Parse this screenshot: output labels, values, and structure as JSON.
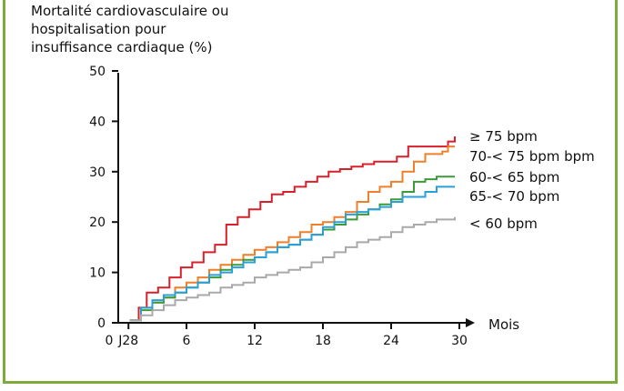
{
  "chart_data": {
    "type": "line",
    "ylabel": "Mortalité cardiovasculaire ou hospitalisation pour insuffisance cardiaque (%)",
    "xlabel": "Mois",
    "xlim": [
      0,
      30
    ],
    "ylim": [
      0,
      50
    ],
    "y_ticks": [
      "0",
      "10",
      "20",
      "30",
      "40",
      "50"
    ],
    "x_ticks": [
      {
        "value": 0,
        "label": "0"
      },
      {
        "value": 0.9,
        "label": "J28"
      },
      {
        "value": 6,
        "label": "6"
      },
      {
        "value": 12,
        "label": "12"
      },
      {
        "value": 18,
        "label": "18"
      },
      {
        "value": 24,
        "label": "24"
      },
      {
        "value": 30,
        "label": "30"
      }
    ],
    "grid": false,
    "legend_placement": "right, at line ends",
    "series": [
      {
        "name": "≥ 75 bpm",
        "color": "#d8202a",
        "points": [
          [
            1,
            0.5
          ],
          [
            1.8,
            3
          ],
          [
            2.5,
            6
          ],
          [
            3.5,
            7
          ],
          [
            4.5,
            9
          ],
          [
            5.5,
            11
          ],
          [
            6.5,
            12
          ],
          [
            7.5,
            14
          ],
          [
            8.5,
            15.5
          ],
          [
            9.5,
            19.5
          ],
          [
            10.5,
            21
          ],
          [
            11.5,
            22.5
          ],
          [
            12.5,
            24
          ],
          [
            13.5,
            25.5
          ],
          [
            14.5,
            26
          ],
          [
            15.5,
            27
          ],
          [
            16.5,
            28
          ],
          [
            17.5,
            29
          ],
          [
            18.5,
            30
          ],
          [
            19.5,
            30.5
          ],
          [
            20.5,
            31
          ],
          [
            21.5,
            31.5
          ],
          [
            22.5,
            32
          ],
          [
            23.5,
            32
          ],
          [
            24.5,
            33
          ],
          [
            25.5,
            35
          ],
          [
            27,
            35
          ],
          [
            28.5,
            35
          ],
          [
            29,
            36
          ],
          [
            29.6,
            37
          ]
        ]
      },
      {
        "name": "70-< 75 bpm bpm",
        "color": "#ef7f2a",
        "points": [
          [
            1,
            0.5
          ],
          [
            2,
            3
          ],
          [
            3,
            4
          ],
          [
            4,
            5
          ],
          [
            5,
            7
          ],
          [
            6,
            8
          ],
          [
            7,
            9
          ],
          [
            8,
            10.5
          ],
          [
            9,
            11.5
          ],
          [
            10,
            12.5
          ],
          [
            11,
            13.5
          ],
          [
            12,
            14.5
          ],
          [
            13,
            15
          ],
          [
            14,
            16
          ],
          [
            15,
            17
          ],
          [
            16,
            18
          ],
          [
            17,
            19.5
          ],
          [
            18,
            20
          ],
          [
            19,
            21
          ],
          [
            20,
            22
          ],
          [
            21,
            24
          ],
          [
            22,
            26
          ],
          [
            23,
            27
          ],
          [
            24,
            28
          ],
          [
            25,
            30
          ],
          [
            26,
            32
          ],
          [
            27,
            33.5
          ],
          [
            28.5,
            34
          ],
          [
            29,
            35
          ],
          [
            29.6,
            35
          ]
        ]
      },
      {
        "name": "60-< 65 bpm",
        "color": "#3d9a38",
        "points": [
          [
            1,
            0.5
          ],
          [
            2,
            2.5
          ],
          [
            3,
            4
          ],
          [
            4,
            5
          ],
          [
            5,
            6
          ],
          [
            6,
            7
          ],
          [
            7,
            8
          ],
          [
            8,
            9
          ],
          [
            9,
            10.5
          ],
          [
            10,
            11.5
          ],
          [
            11,
            12.5
          ],
          [
            12,
            13
          ],
          [
            13,
            14
          ],
          [
            14,
            15
          ],
          [
            15,
            15.5
          ],
          [
            16,
            16.5
          ],
          [
            17,
            17.5
          ],
          [
            18,
            18.5
          ],
          [
            19,
            19.5
          ],
          [
            20,
            20.5
          ],
          [
            21,
            21.5
          ],
          [
            22,
            22.5
          ],
          [
            23,
            23.5
          ],
          [
            24,
            24.5
          ],
          [
            25,
            26
          ],
          [
            26,
            28
          ],
          [
            27,
            28.5
          ],
          [
            28,
            29
          ],
          [
            29,
            29
          ],
          [
            29.6,
            29
          ]
        ]
      },
      {
        "name": "65-< 70 bpm",
        "color": "#2a9fd8",
        "points": [
          [
            1,
            0.5
          ],
          [
            2,
            3
          ],
          [
            3,
            4.5
          ],
          [
            4,
            5.5
          ],
          [
            5,
            6
          ],
          [
            6,
            7
          ],
          [
            7,
            8
          ],
          [
            8,
            9.5
          ],
          [
            9,
            10
          ],
          [
            10,
            11
          ],
          [
            11,
            12
          ],
          [
            12,
            13
          ],
          [
            13,
            14
          ],
          [
            14,
            15
          ],
          [
            15,
            15.5
          ],
          [
            16,
            16.5
          ],
          [
            17,
            17.5
          ],
          [
            18,
            19
          ],
          [
            19,
            20
          ],
          [
            20,
            21.5
          ],
          [
            21,
            22
          ],
          [
            22,
            22.5
          ],
          [
            23,
            23
          ],
          [
            24,
            24
          ],
          [
            25,
            25
          ],
          [
            26,
            25
          ],
          [
            27,
            26
          ],
          [
            28,
            27
          ],
          [
            29,
            27
          ],
          [
            29.6,
            27
          ]
        ]
      },
      {
        "name": "< 60 bpm",
        "color": "#a9a9a9",
        "points": [
          [
            1,
            0.5
          ],
          [
            2,
            1.5
          ],
          [
            3,
            2.5
          ],
          [
            4,
            3.5
          ],
          [
            5,
            4.5
          ],
          [
            6,
            5
          ],
          [
            7,
            5.5
          ],
          [
            8,
            6
          ],
          [
            9,
            7
          ],
          [
            10,
            7.5
          ],
          [
            11,
            8
          ],
          [
            12,
            9
          ],
          [
            13,
            9.5
          ],
          [
            14,
            10
          ],
          [
            15,
            10.5
          ],
          [
            16,
            11
          ],
          [
            17,
            12
          ],
          [
            18,
            13
          ],
          [
            19,
            14
          ],
          [
            20,
            15
          ],
          [
            21,
            16
          ],
          [
            22,
            16.5
          ],
          [
            23,
            17
          ],
          [
            24,
            18
          ],
          [
            25,
            19
          ],
          [
            26,
            19.5
          ],
          [
            27,
            20
          ],
          [
            28,
            20.5
          ],
          [
            29,
            20.5
          ],
          [
            29.6,
            21
          ]
        ]
      }
    ]
  }
}
